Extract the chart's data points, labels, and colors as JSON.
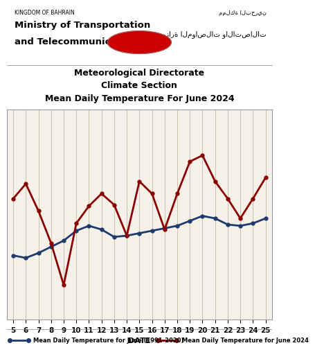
{
  "title_line1": "Meteorological Directorate",
  "title_line2": "Climate Section",
  "title_line3": "Mean Daily Temperature For June 2024",
  "header_left_small": "KINGDOM OF BAHRAIN",
  "header_left_large1": "Ministry of Transportation",
  "header_left_large2": "and Telecommunications",
  "xlabel": "DATE",
  "legend1": "Mean Daily Temperature for June (1991-2020)",
  "legend2": "Mean Daily Temperature for June 2024",
  "dates": [
    5,
    6,
    7,
    8,
    9,
    10,
    11,
    12,
    13,
    14,
    15,
    16,
    17,
    18,
    19,
    20,
    21,
    22,
    23,
    24,
    25
  ],
  "historical_temp": [
    30.2,
    30.0,
    30.4,
    30.9,
    31.4,
    32.2,
    32.6,
    32.3,
    31.7,
    31.8,
    32.0,
    32.2,
    32.4,
    32.6,
    33.0,
    33.4,
    33.2,
    32.7,
    32.6,
    32.8,
    33.2
  ],
  "current_temp": [
    34.8,
    36.0,
    33.8,
    31.2,
    27.8,
    32.8,
    34.2,
    35.2,
    34.3,
    31.8,
    36.2,
    35.2,
    32.3,
    35.2,
    37.8,
    38.3,
    36.2,
    34.8,
    33.2,
    34.8,
    36.5
  ],
  "historical_color": "#1f3a6e",
  "current_color": "#8b0000",
  "background_color": "#f5f0e8",
  "grid_color": "#c8b8a0",
  "ylim_min": 25,
  "ylim_max": 42,
  "fig_bg": "#ffffff"
}
